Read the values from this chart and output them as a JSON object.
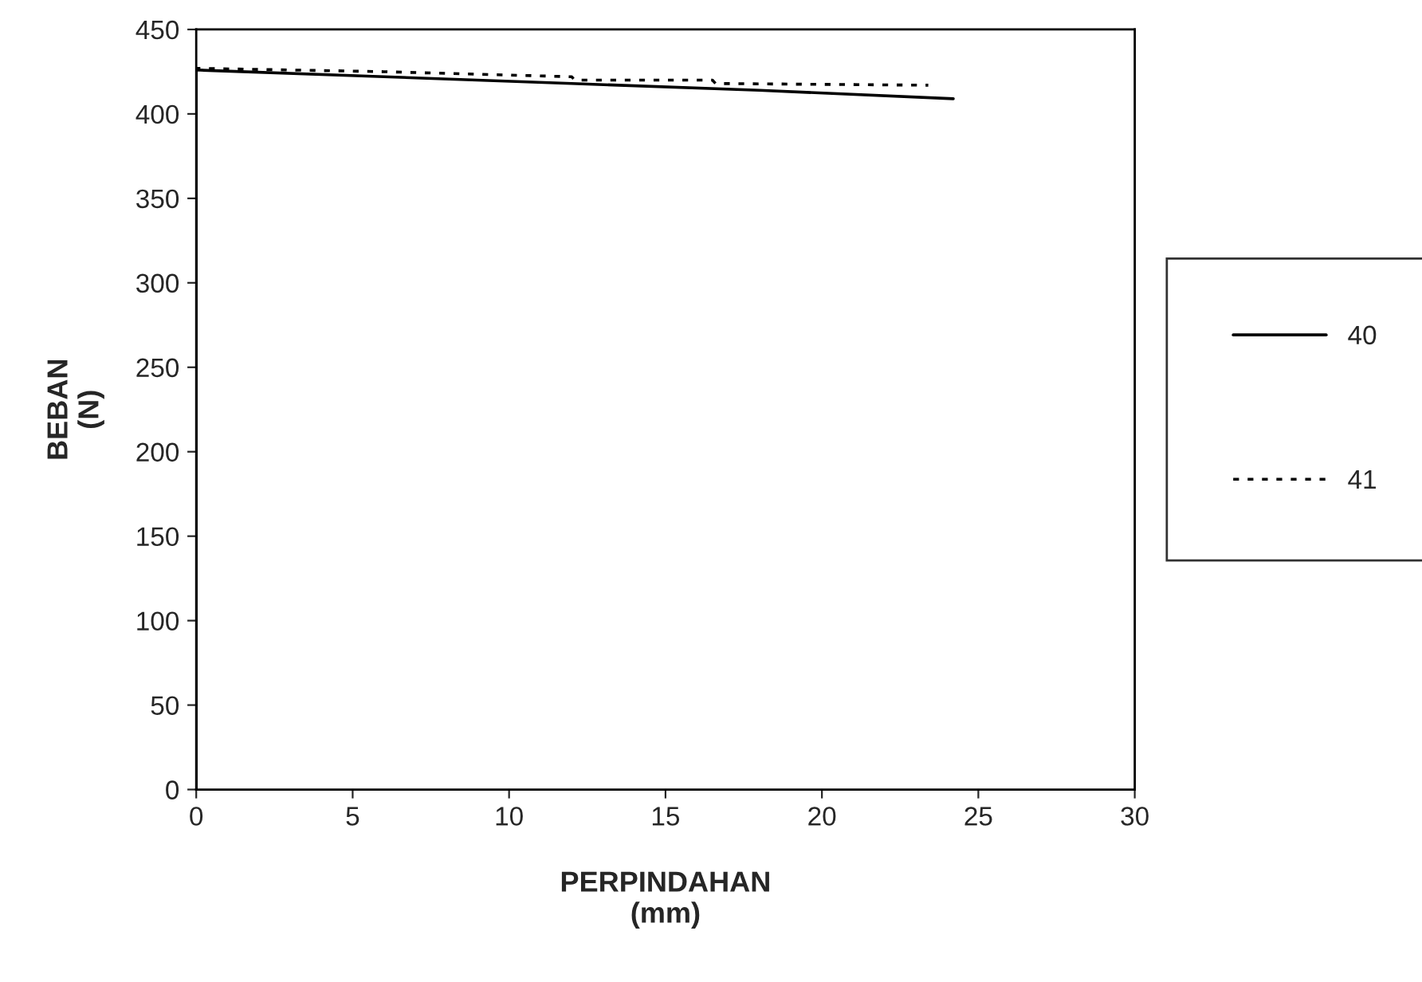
{
  "chart_data": {
    "type": "line",
    "xlabel": "PERPINDAHAN\n(mm)",
    "ylabel": "BEBAN\n(N)",
    "xlim": [
      0,
      30
    ],
    "xticks": [
      0,
      5,
      10,
      15,
      20,
      25,
      30
    ],
    "ylim": [
      0,
      450
    ],
    "yticks": [
      0,
      50,
      100,
      150,
      200,
      250,
      300,
      350,
      400,
      450
    ],
    "grid": false,
    "legend": "right",
    "marker": "none",
    "series": [
      {
        "name": "40",
        "color": "#000000",
        "line_style": "solid",
        "x": [
          0,
          0,
          6,
          12,
          18,
          24.2
        ],
        "values": [
          0,
          426,
          422,
          418,
          414,
          409
        ]
      },
      {
        "name": "41",
        "color": "#000000",
        "line_style": "dotted",
        "x": [
          0,
          0,
          6,
          12,
          12.1,
          16.5,
          16.6,
          23.4
        ],
        "values": [
          0,
          427,
          425,
          422,
          420,
          420,
          418,
          417
        ]
      }
    ]
  }
}
